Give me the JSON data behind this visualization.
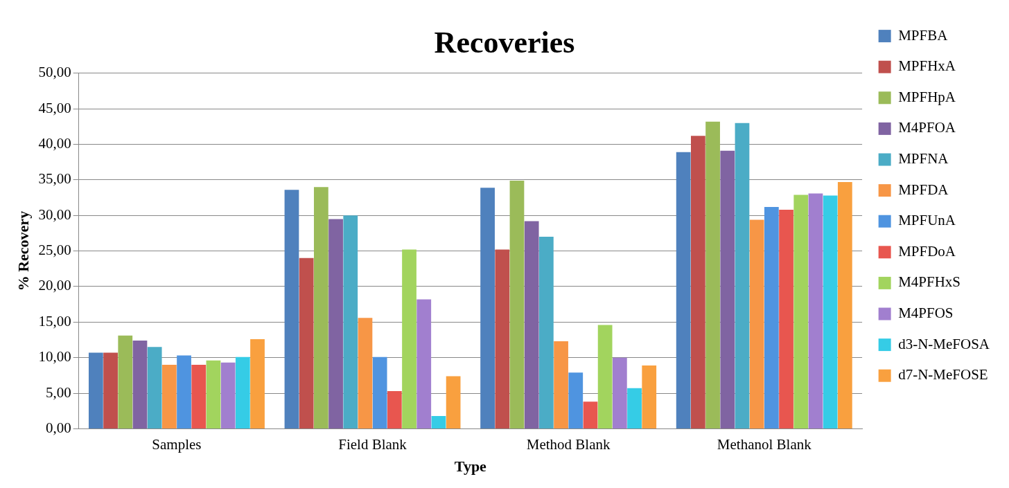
{
  "chart_data": {
    "type": "bar",
    "title": "Recoveries",
    "xlabel": "Type",
    "ylabel": "% Recovery",
    "categories": [
      "Samples",
      "Field Blank",
      "Method Blank",
      "Methanol Blank"
    ],
    "series": [
      {
        "name": "MPFBA",
        "color": "#4f81bd",
        "values": [
          10.7,
          33.6,
          33.9,
          38.9
        ]
      },
      {
        "name": "MPFHxA",
        "color": "#c0504d",
        "values": [
          10.7,
          24.0,
          25.2,
          41.2
        ]
      },
      {
        "name": "MPFHpA",
        "color": "#9bbb59",
        "values": [
          13.1,
          34.0,
          34.9,
          43.2
        ]
      },
      {
        "name": "M4PFOA",
        "color": "#8064a2",
        "values": [
          12.4,
          29.5,
          29.2,
          39.1
        ]
      },
      {
        "name": "MPFNA",
        "color": "#4bacc6",
        "values": [
          11.5,
          30.0,
          27.0,
          43.0
        ]
      },
      {
        "name": "MPFDA",
        "color": "#f79646",
        "values": [
          9.0,
          15.6,
          12.3,
          29.4
        ]
      },
      {
        "name": "MPFUnA",
        "color": "#4f94e0",
        "values": [
          10.3,
          10.1,
          7.9,
          31.2
        ]
      },
      {
        "name": "MPFDoA",
        "color": "#e8564f",
        "values": [
          9.0,
          5.3,
          3.8,
          30.8
        ]
      },
      {
        "name": "M4PFHxS",
        "color": "#a2d45e",
        "values": [
          9.6,
          25.2,
          14.6,
          32.9
        ]
      },
      {
        "name": "M4PFOS",
        "color": "#a17fcf",
        "values": [
          9.3,
          18.2,
          10.0,
          33.1
        ]
      },
      {
        "name": "d3-N-MeFOSA",
        "color": "#35cce6",
        "values": [
          10.1,
          1.8,
          5.7,
          32.8
        ]
      },
      {
        "name": "d7-N-MeFOSE",
        "color": "#f9a03f",
        "values": [
          12.6,
          7.4,
          8.9,
          34.7
        ]
      }
    ],
    "ylim": [
      0,
      50
    ],
    "yticks": [
      {
        "value": 0,
        "label": "0,00"
      },
      {
        "value": 5,
        "label": "5,00"
      },
      {
        "value": 10,
        "label": "10,00"
      },
      {
        "value": 15,
        "label": "15,00"
      },
      {
        "value": 20,
        "label": "20,00"
      },
      {
        "value": 25,
        "label": "25,00"
      },
      {
        "value": 30,
        "label": "30,00"
      },
      {
        "value": 35,
        "label": "35,00"
      },
      {
        "value": 40,
        "label": "40,00"
      },
      {
        "value": 45,
        "label": "45,00"
      },
      {
        "value": 50,
        "label": "50,00"
      }
    ],
    "grid": "y",
    "legend": "right"
  }
}
